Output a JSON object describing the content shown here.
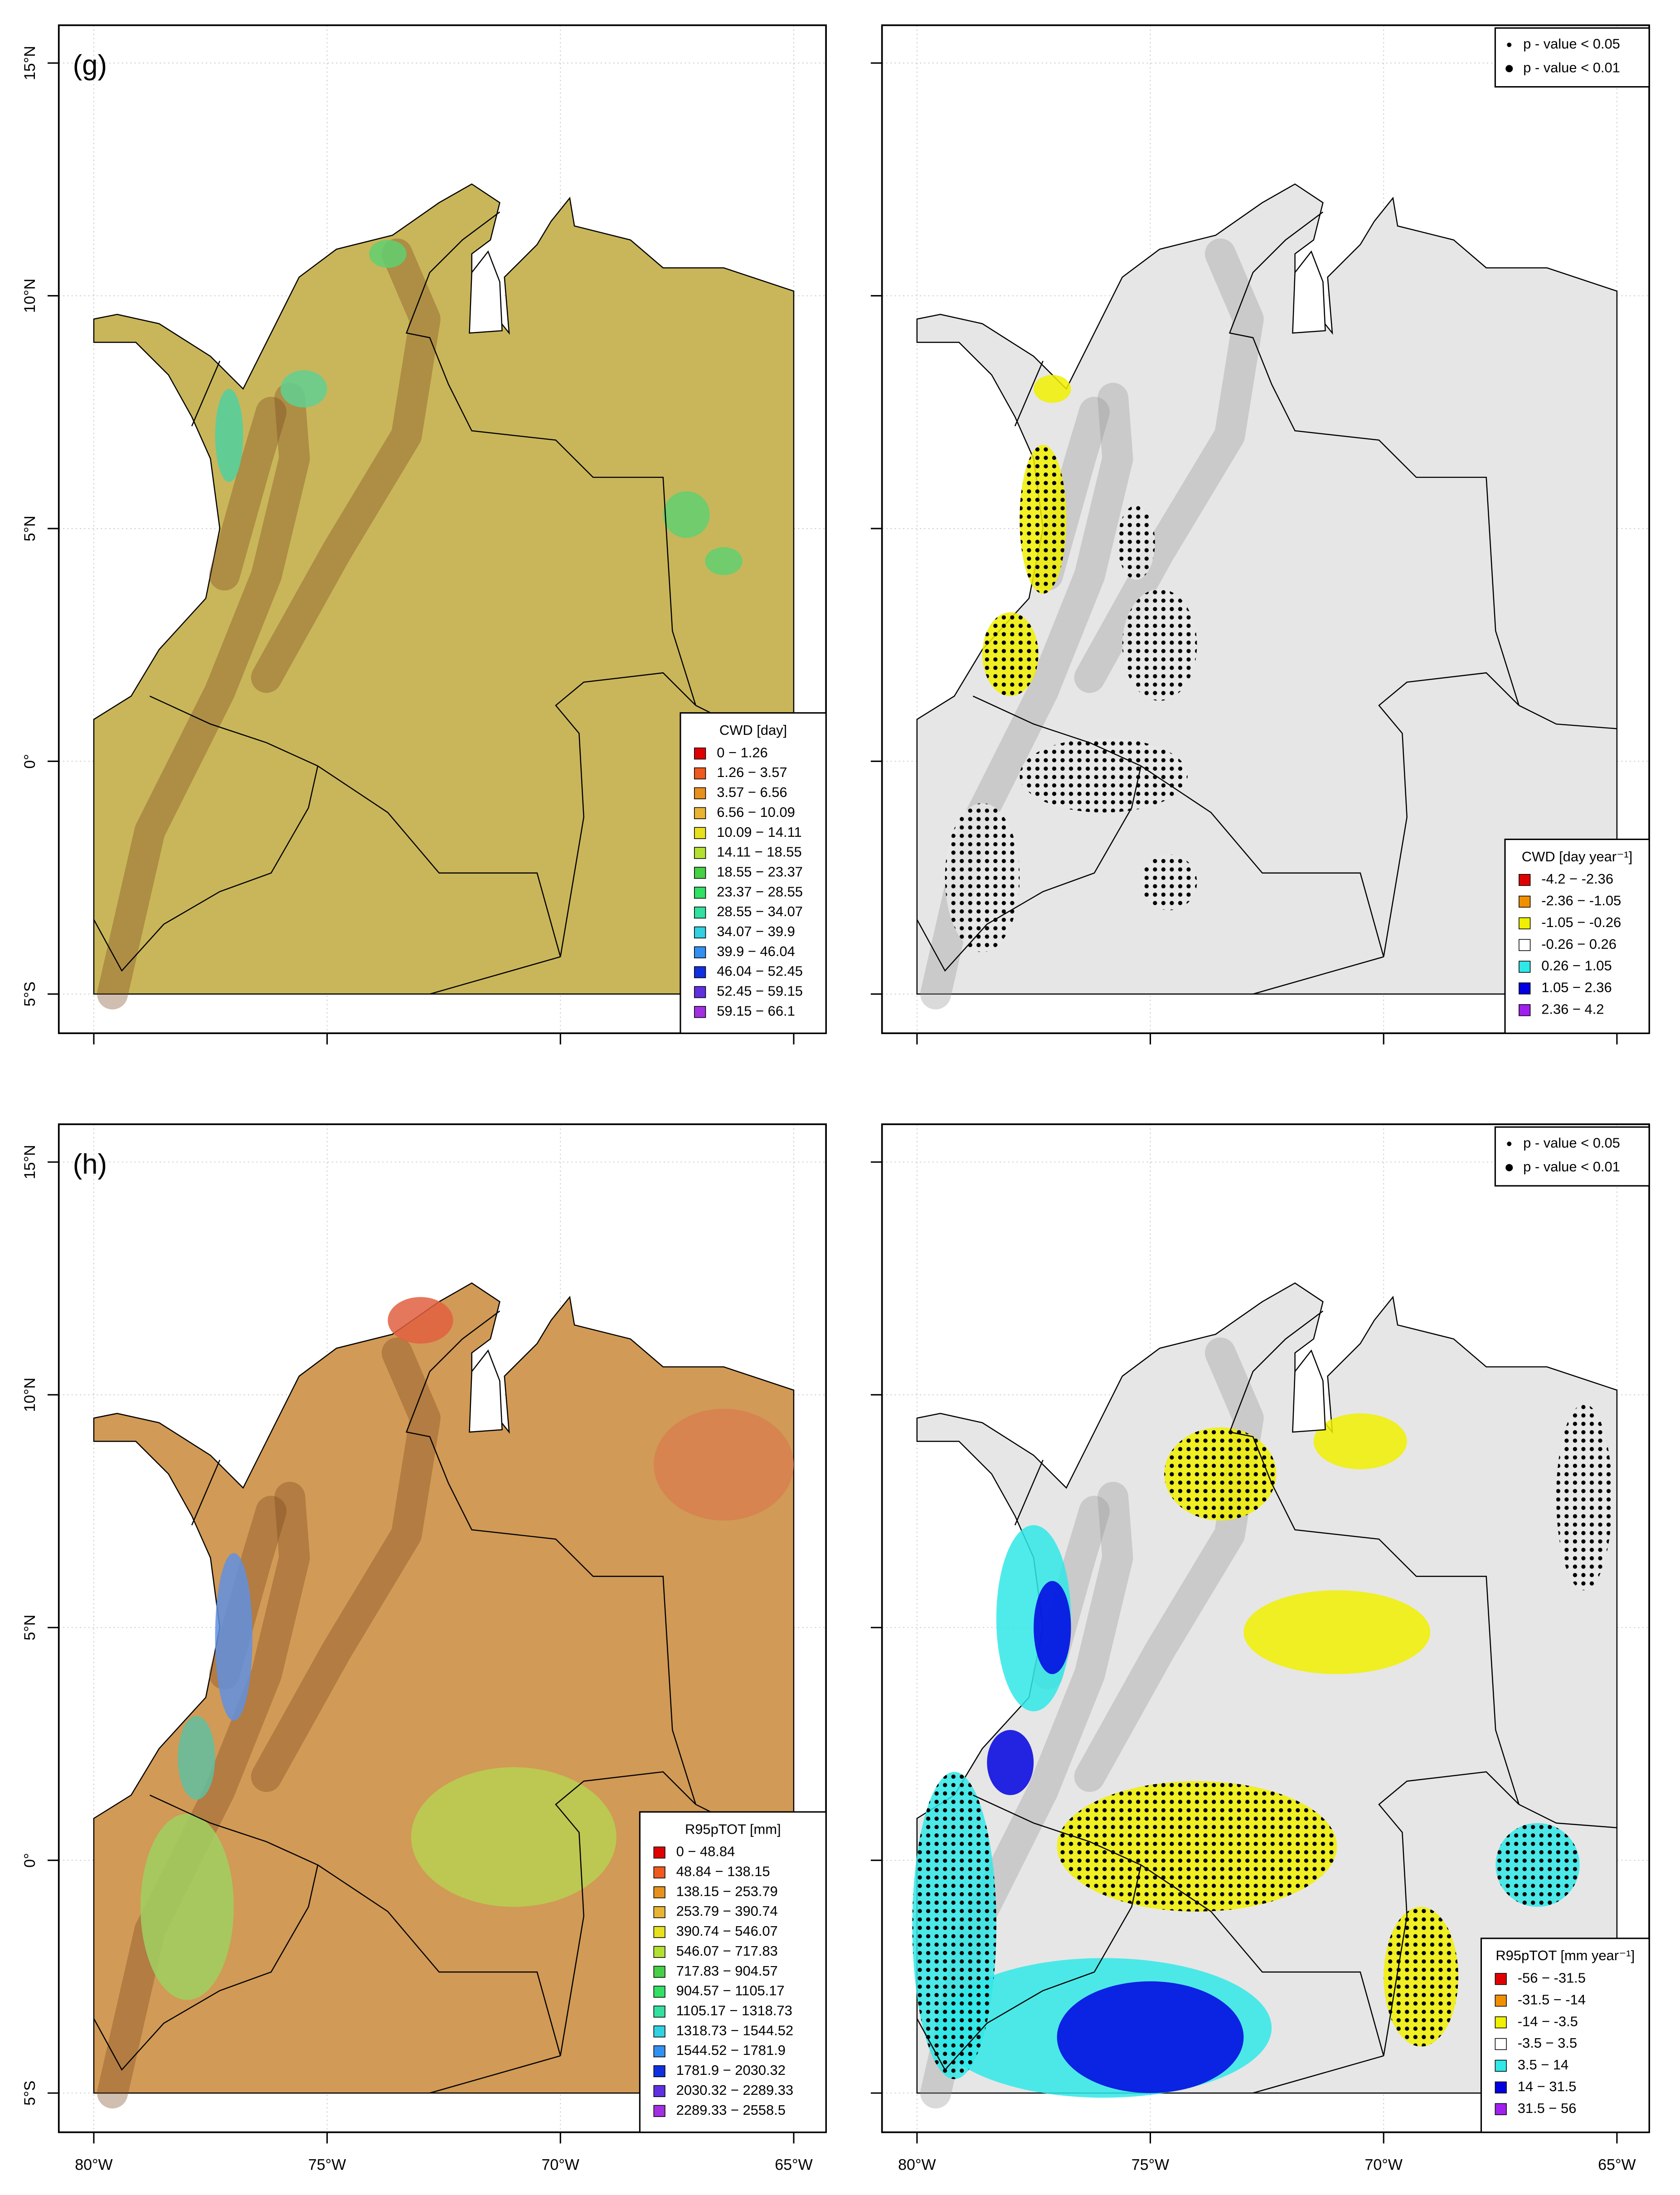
{
  "axes": {
    "xticks": [
      {
        "value": -80,
        "label": "80°W"
      },
      {
        "value": -75,
        "label": "75°W"
      },
      {
        "value": -70,
        "label": "70°W"
      },
      {
        "value": -65,
        "label": "65°W"
      }
    ],
    "yticks": [
      {
        "value": -5,
        "label": "5°S"
      },
      {
        "value": 0,
        "label": "0°"
      },
      {
        "value": 5,
        "label": "5°N"
      },
      {
        "value": 10,
        "label": "10°N"
      },
      {
        "value": 15,
        "label": "15°N"
      }
    ]
  },
  "panels": [
    {
      "label": "(g)",
      "legend": {
        "title": "CWD [day]",
        "items": [
          {
            "label": "0 − 1.26",
            "color": "#e00000"
          },
          {
            "label": "1.26 − 3.57",
            "color": "#f05a1e"
          },
          {
            "label": "3.57 − 6.56",
            "color": "#e8901e"
          },
          {
            "label": "6.56 − 10.09",
            "color": "#e8b432"
          },
          {
            "label": "10.09 − 14.11",
            "color": "#e8e01e"
          },
          {
            "label": "14.11 − 18.55",
            "color": "#b4e032"
          },
          {
            "label": "18.55 − 23.37",
            "color": "#46d046"
          },
          {
            "label": "23.37 − 28.55",
            "color": "#32e064"
          },
          {
            "label": "28.55 − 34.07",
            "color": "#32e0a0"
          },
          {
            "label": "34.07 − 39.9",
            "color": "#32d0e0"
          },
          {
            "label": "39.9 − 46.04",
            "color": "#3290f0"
          },
          {
            "label": "46.04 − 52.45",
            "color": "#1030e0"
          },
          {
            "label": "52.45 − 59.15",
            "color": "#6030e0"
          },
          {
            "label": "59.15 − 66.1",
            "color": "#a030e0"
          }
        ]
      }
    },
    {
      "significance": [
        "p - value < 0.05",
        "p - value < 0.01"
      ],
      "legend": {
        "title": "CWD [day year⁻¹]",
        "items": [
          {
            "label": "-4.2 − -2.36",
            "color": "#e00000"
          },
          {
            "label": "-2.36 − -1.05",
            "color": "#f09000"
          },
          {
            "label": "-1.05 − -0.26",
            "color": "#f0f000"
          },
          {
            "label": "-0.26 − 0.26",
            "color": "#ffffff"
          },
          {
            "label": "0.26 − 1.05",
            "color": "#30e8e8"
          },
          {
            "label": "1.05 − 2.36",
            "color": "#0000e0"
          },
          {
            "label": "2.36 − 4.2",
            "color": "#a020f0"
          }
        ]
      }
    },
    {
      "label": "(h)",
      "legend": {
        "title": "R95pTOT [mm]",
        "items": [
          {
            "label": "0 − 48.84",
            "color": "#e00000"
          },
          {
            "label": "48.84 − 138.15",
            "color": "#f05a1e"
          },
          {
            "label": "138.15 − 253.79",
            "color": "#e8901e"
          },
          {
            "label": "253.79 − 390.74",
            "color": "#e8b432"
          },
          {
            "label": "390.74 − 546.07",
            "color": "#e8e01e"
          },
          {
            "label": "546.07 − 717.83",
            "color": "#b4e032"
          },
          {
            "label": "717.83 − 904.57",
            "color": "#46d046"
          },
          {
            "label": "904.57 − 1105.17",
            "color": "#32e064"
          },
          {
            "label": "1105.17 − 1318.73",
            "color": "#32e0a0"
          },
          {
            "label": "1318.73 − 1544.52",
            "color": "#32d0e0"
          },
          {
            "label": "1544.52 − 1781.9",
            "color": "#3290f0"
          },
          {
            "label": "1781.9 − 2030.32",
            "color": "#1030e0"
          },
          {
            "label": "2030.32 − 2289.33",
            "color": "#6030e0"
          },
          {
            "label": "2289.33 − 2558.5",
            "color": "#a030e0"
          }
        ]
      }
    },
    {
      "significance": [
        "p - value < 0.05",
        "p - value < 0.01"
      ],
      "legend": {
        "title": "R95pTOT [mm year⁻¹]",
        "items": [
          {
            "label": "-56 − -31.5",
            "color": "#e00000"
          },
          {
            "label": "-31.5 − -14",
            "color": "#f09000"
          },
          {
            "label": "-14 − -3.5",
            "color": "#f0f000"
          },
          {
            "label": "-3.5 − 3.5",
            "color": "#ffffff"
          },
          {
            "label": "3.5 − 14",
            "color": "#30e8e8"
          },
          {
            "label": "14 − 31.5",
            "color": "#0000e0"
          },
          {
            "label": "31.5 − 56",
            "color": "#a020f0"
          }
        ]
      }
    }
  ]
}
